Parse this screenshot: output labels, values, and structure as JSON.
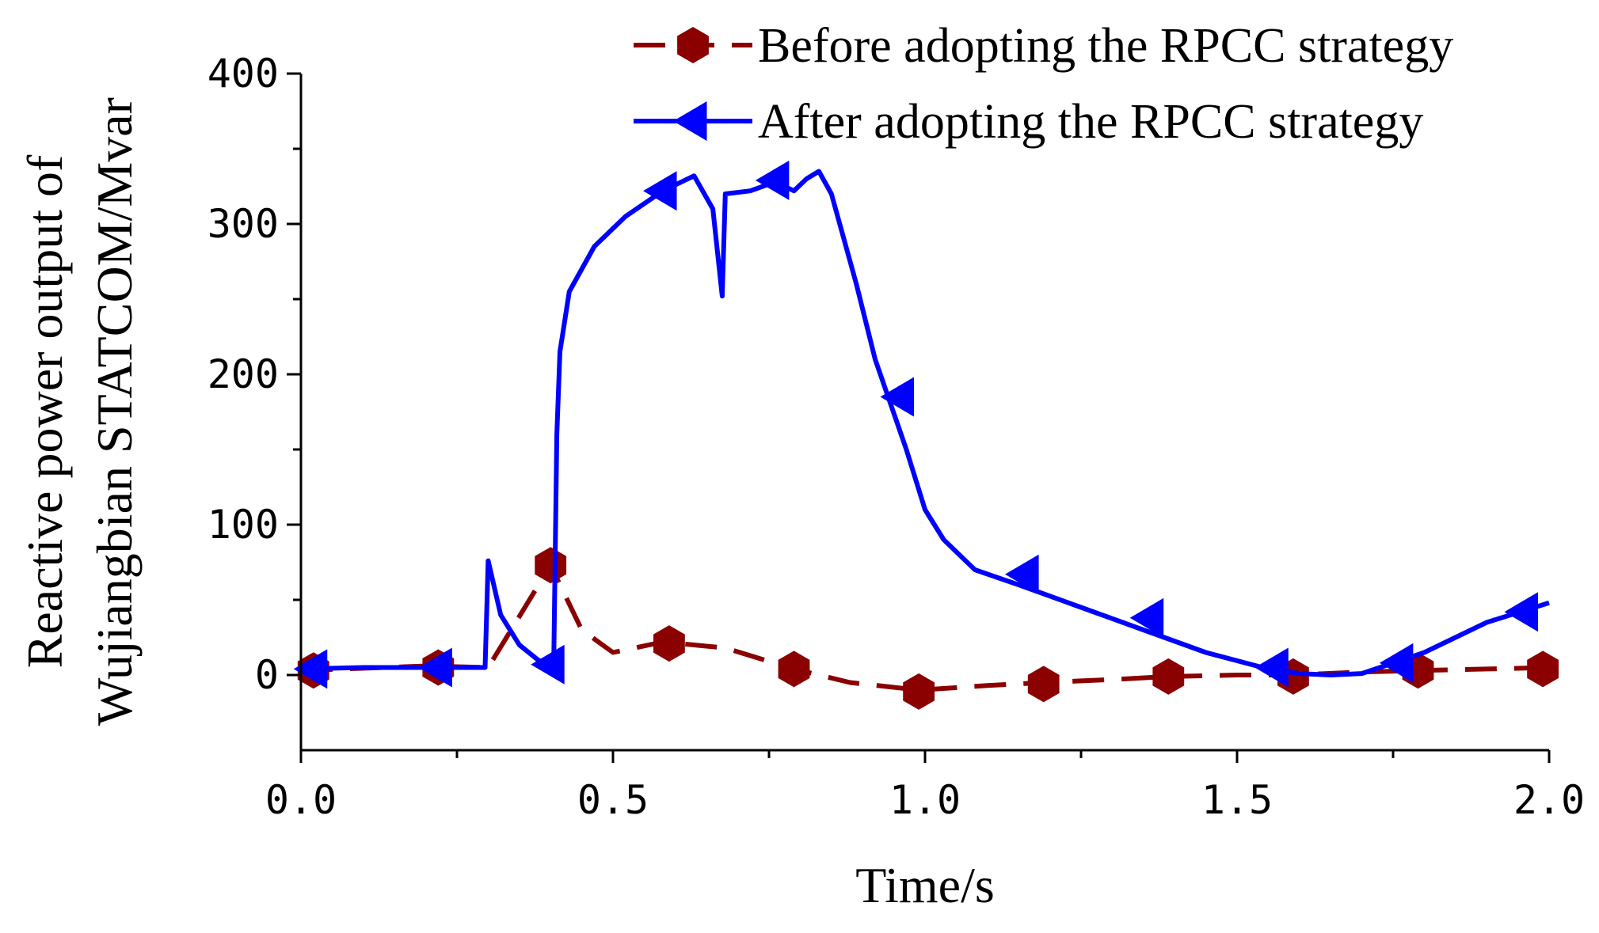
{
  "chart_data": {
    "type": "line",
    "title": "",
    "xlabel": "Time/s",
    "ylabel_lines": [
      "Reactive power output of",
      "Wujiangbian STATCOM/Mvar"
    ],
    "xlim": [
      0,
      2
    ],
    "ylim": [
      -50,
      400
    ],
    "x_ticks": [
      0,
      0.5,
      1.0,
      1.5,
      2.0
    ],
    "x_tick_labels": [
      "0.0",
      "0.5",
      "1.0",
      "1.5",
      "2.0"
    ],
    "y_ticks": [
      0,
      100,
      200,
      300,
      400
    ],
    "y_tick_labels": [
      "0",
      "100",
      "200",
      "300",
      "400"
    ],
    "grid": false,
    "legend": "top-right",
    "series": [
      {
        "name": "Before adopting the RPCC strategy",
        "color": "#8B0000",
        "line_style": "dashed",
        "marker": "hexagon",
        "x": [
          0,
          0.2,
          0.3,
          0.4,
          0.45,
          0.5,
          0.58,
          0.68,
          0.79,
          0.88,
          0.99,
          1.1,
          1.19,
          1.3,
          1.39,
          1.5,
          1.59,
          1.7,
          1.79,
          1.9,
          2.0
        ],
        "y": [
          3,
          6,
          5,
          73,
          30,
          15,
          22,
          18,
          4,
          -5,
          -10,
          -7,
          -5,
          -3,
          -1,
          0,
          0,
          2,
          3,
          4,
          5
        ],
        "markers_x": [
          0.02,
          0.22,
          0.4,
          0.59,
          0.79,
          0.99,
          1.19,
          1.39,
          1.59,
          1.79,
          1.99
        ],
        "markers_y": [
          3,
          5,
          73,
          21,
          4,
          -11,
          -6,
          -1,
          -1,
          3,
          4
        ]
      },
      {
        "name": "After adopting the RPCC strategy",
        "color": "#0000FF",
        "line_style": "solid",
        "marker": "left-triangle",
        "x": [
          0,
          0.1,
          0.2,
          0.29,
          0.295,
          0.3,
          0.32,
          0.35,
          0.38,
          0.405,
          0.41,
          0.415,
          0.43,
          0.47,
          0.52,
          0.58,
          0.63,
          0.66,
          0.675,
          0.68,
          0.72,
          0.76,
          0.79,
          0.81,
          0.83,
          0.85,
          0.89,
          0.92,
          0.97,
          1.0,
          1.03,
          1.08,
          1.15,
          1.25,
          1.35,
          1.45,
          1.55,
          1.6,
          1.65,
          1.7,
          1.8,
          1.9,
          2.0
        ],
        "y": [
          4,
          5,
          5,
          5,
          5,
          76,
          40,
          20,
          10,
          5,
          160,
          215,
          255,
          285,
          305,
          322,
          332,
          310,
          252,
          320,
          322,
          328,
          322,
          330,
          335,
          320,
          260,
          210,
          150,
          110,
          90,
          70,
          60,
          45,
          30,
          15,
          4,
          1,
          0,
          1,
          15,
          35,
          48
        ],
        "markers_x": [
          0.02,
          0.22,
          0.4,
          0.58,
          0.76,
          0.96,
          1.16,
          1.36,
          1.56,
          1.76,
          1.96
        ],
        "markers_y": [
          4,
          5,
          7,
          322,
          329,
          185,
          67,
          38,
          5,
          8,
          42
        ]
      }
    ]
  }
}
